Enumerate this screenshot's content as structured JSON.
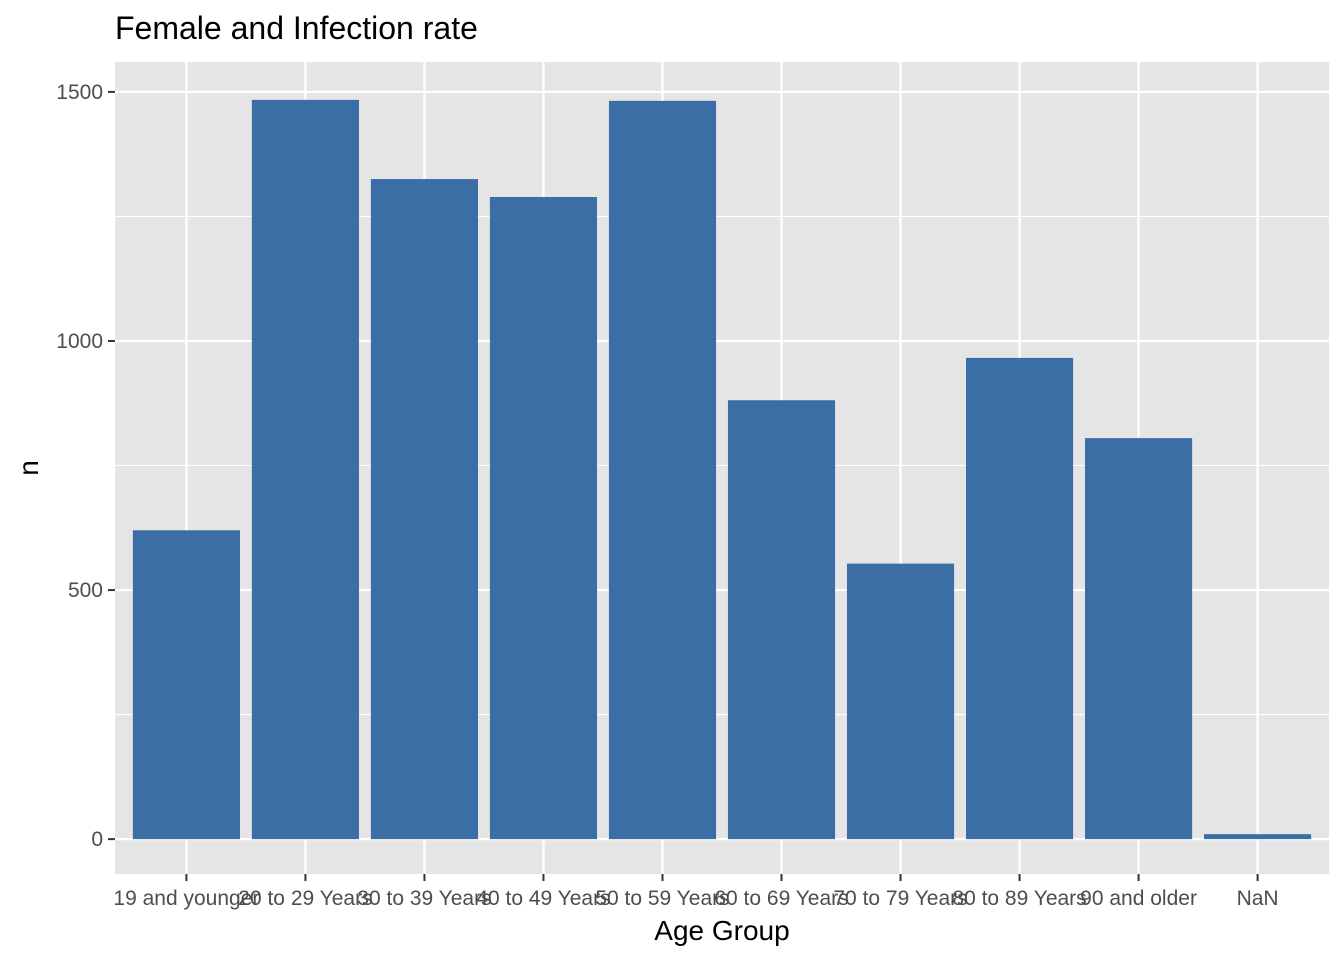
{
  "chart_data": {
    "type": "bar",
    "title": "Female and Infection rate",
    "xlabel": "Age Group",
    "ylabel": "n",
    "categories": [
      "19 and younger",
      "20 to 29 Years",
      "30 to 39 Years",
      "40 to 49 Years",
      "50 to 59 Years",
      "60 to 69 Years",
      "70 to 79 Years",
      "80 to 89 Years",
      "90 and older",
      "NaN"
    ],
    "values": [
      620,
      1484,
      1325,
      1289,
      1482,
      881,
      553,
      966,
      805,
      10
    ],
    "ylim": [
      -70,
      1560
    ],
    "yticks": [
      0,
      500,
      1000,
      1500
    ],
    "grid": true,
    "legend": "none",
    "colors": {
      "bar": "#3a6ea5",
      "panel": "#e5e5e5",
      "grid": "#ffffff"
    }
  }
}
